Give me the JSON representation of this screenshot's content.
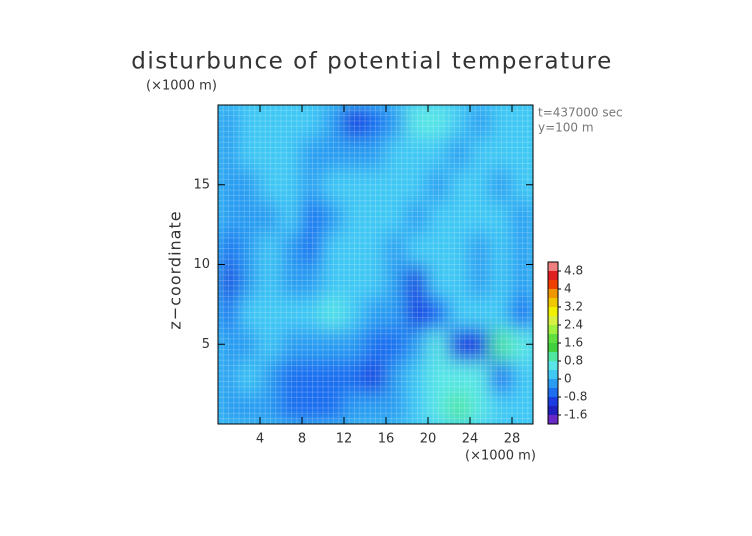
{
  "chart_data": {
    "type": "contour",
    "title": "disturbunce of potential temperature",
    "y_unit": "(×1000 m)",
    "x_unit": "(×1000 m)",
    "ylabel": "z−coordinate",
    "annotations": [
      "t=437000 sec",
      "y=100 m"
    ],
    "x": [
      1,
      3,
      5,
      7,
      9,
      11,
      13,
      15,
      17,
      19,
      21,
      23,
      25,
      27,
      29
    ],
    "y": [
      1,
      3,
      5,
      7,
      9,
      11,
      13,
      15,
      17,
      19
    ],
    "z": [
      [
        -0.1,
        -0.2,
        -0.3,
        -0.5,
        -0.7,
        -0.8,
        -0.3,
        -0.4,
        -0.2,
        0.1,
        0.4,
        0.9,
        0.6,
        0.2,
        0.1
      ],
      [
        -0.2,
        0,
        -0.4,
        -0.6,
        -0.8,
        -0.5,
        -0.8,
        -1.0,
        -0.4,
        0,
        0.6,
        0.6,
        0.6,
        -0.8,
        0
      ],
      [
        -0.3,
        -0.1,
        0.2,
        -0.2,
        -0.4,
        -0.3,
        -0.3,
        -0.8,
        -0.6,
        -0.2,
        0.4,
        -1.2,
        -1.0,
        0.9,
        0.5
      ],
      [
        -0.6,
        0,
        0.3,
        0.1,
        0.2,
        0.5,
        0,
        -0.2,
        -0.4,
        -0.9,
        -0.8,
        0.1,
        0.2,
        0,
        -0.8
      ],
      [
        -0.9,
        -0.2,
        0.2,
        -0.3,
        -0.4,
        0.1,
        0.2,
        0,
        -0.2,
        -0.9,
        0.1,
        0.2,
        -0.2,
        0.2,
        -0.4
      ],
      [
        -0.5,
        -0.2,
        0.1,
        -0.4,
        -0.6,
        0,
        0.3,
        0.1,
        -0.2,
        0,
        0.3,
        0.2,
        -0.1,
        0.1,
        -0.3
      ],
      [
        -0.2,
        -0.3,
        -0.1,
        0.2,
        -0.5,
        -0.1,
        0.2,
        0.1,
        0,
        -0.2,
        0.1,
        0.3,
        0.1,
        0,
        -0.2
      ],
      [
        -0.3,
        -0.2,
        0,
        0.1,
        -0.4,
        0,
        0.2,
        0.2,
        0.1,
        0,
        -0.3,
        0.1,
        0.2,
        -0.1,
        0
      ],
      [
        -0.3,
        0.1,
        0.2,
        0,
        -0.3,
        -0.1,
        -0.2,
        -0.2,
        0,
        0.2,
        0.1,
        -0.2,
        0.1,
        0.2,
        0.1
      ],
      [
        -0.2,
        0.2,
        0.3,
        0.2,
        0,
        -0.2,
        -1.2,
        -0.8,
        -0.3,
        0.5,
        0.6,
        0.1,
        -0.2,
        0,
        0.1
      ]
    ],
    "xlim": [
      0,
      30
    ],
    "ylim": [
      0,
      20
    ],
    "xticks": [
      4,
      8,
      12,
      16,
      20,
      24,
      28
    ],
    "yticks": [
      5,
      10,
      15
    ],
    "levels": [
      -2,
      -1.6,
      -1.2,
      -0.8,
      -0.4,
      0,
      0.4,
      0.8,
      1.2,
      1.6,
      2,
      2.4,
      2.8,
      3.2,
      3.6,
      4,
      4.4,
      4.8,
      5.2
    ],
    "colors": [
      "#6a28c8",
      "#2020c0",
      "#1a3ce0",
      "#1e6ef0",
      "#2c9cf2",
      "#40c8f4",
      "#58e6e6",
      "#50e6a0",
      "#40d040",
      "#60e040",
      "#a0f040",
      "#d8f040",
      "#f0f000",
      "#f0c800",
      "#f09600",
      "#f04000",
      "#e02020",
      "#f08080"
    ],
    "cbar_ticks": [
      -1.6,
      -0.8,
      0,
      0.8,
      1.6,
      2.4,
      3.2,
      4,
      4.8
    ],
    "grid": true
  }
}
